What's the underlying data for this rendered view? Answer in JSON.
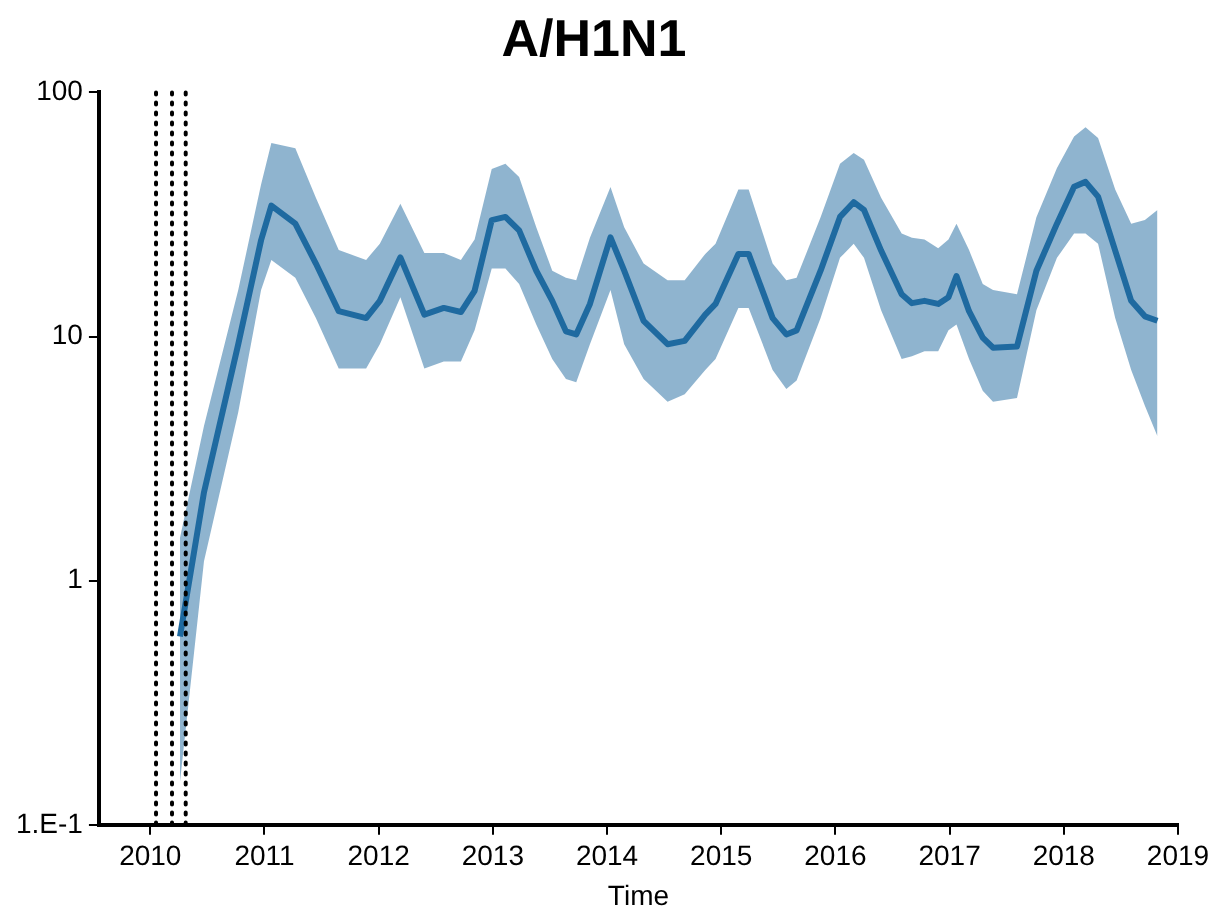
{
  "chart_data": {
    "type": "line",
    "title": "A/H1N1",
    "xlabel": "Time",
    "log": "y",
    "grid": false,
    "legend": false,
    "xlim": [
      2009.55,
      2019
    ],
    "xticks": [
      2010,
      2011,
      2012,
      2013,
      2014,
      2015,
      2016,
      2017,
      2018,
      2019
    ],
    "ylim": [
      0.1,
      100
    ],
    "yticks": [
      {
        "value": 0.1,
        "label": "1.E-1"
      },
      1,
      10,
      100
    ],
    "ref_lines": [
      {
        "axis": "x",
        "value": 2010.05,
        "line_style": "dotted",
        "color": "#000000"
      },
      {
        "axis": "x",
        "value": 2010.19,
        "line_style": "dotted",
        "color": "#000000"
      },
      {
        "axis": "x",
        "value": 2010.31,
        "line_style": "dotted",
        "color": "#000000"
      }
    ],
    "series": [
      {
        "color": "#1f6aa0",
        "x": [
          2010.26,
          2010.47,
          2010.77,
          2010.97,
          2011.06,
          2011.27,
          2011.45,
          2011.65,
          2011.89,
          2012.01,
          2012.19,
          2012.4,
          2012.57,
          2012.72,
          2012.84,
          2012.99,
          2013.11,
          2013.23,
          2013.38,
          2013.52,
          2013.64,
          2013.73,
          2013.85,
          2014.03,
          2014.15,
          2014.32,
          2014.53,
          2014.68,
          2014.86,
          2014.95,
          2015.15,
          2015.24,
          2015.45,
          2015.57,
          2015.66,
          2015.87,
          2016.04,
          2016.16,
          2016.25,
          2016.4,
          2016.58,
          2016.67,
          2016.78,
          2016.9,
          2016.99,
          2017.06,
          2017.17,
          2017.29,
          2017.38,
          2017.59,
          2017.76,
          2017.94,
          2018.09,
          2018.19,
          2018.3,
          2018.45,
          2018.59,
          2018.71,
          2018.82
        ],
        "values": [
          0.59,
          2.3,
          9.3,
          24.8,
          34.4,
          29,
          19.9,
          12.7,
          11.9,
          14,
          21.1,
          12.3,
          13.1,
          12.6,
          15.4,
          30,
          30.9,
          27.2,
          18.6,
          14,
          10.5,
          10.2,
          13.6,
          25.5,
          18.6,
          11.6,
          9.3,
          9.6,
          12.3,
          13.6,
          21.8,
          21.8,
          11.9,
          10.2,
          10.6,
          18.6,
          30.9,
          35.5,
          33,
          22.5,
          14.9,
          13.7,
          14,
          13.6,
          14.5,
          17.7,
          12.7,
          9.9,
          9,
          9.1,
          18.6,
          29,
          41.1,
          43,
          37.4,
          22.5,
          14,
          12.1,
          11.6
        ],
        "lower": [
          0.15,
          1.2,
          4.9,
          15.5,
          20.6,
          17.4,
          11.9,
          7.4,
          7.4,
          9.3,
          14.5,
          7.4,
          7.9,
          7.9,
          10.6,
          19,
          19,
          16.4,
          11.2,
          8.1,
          6.7,
          6.5,
          9.3,
          15.5,
          9.3,
          6.7,
          5.4,
          5.8,
          7.3,
          8.1,
          13.1,
          13.1,
          7.3,
          6.1,
          6.6,
          11.9,
          21,
          24,
          21,
          12.8,
          8.1,
          8.3,
          8.7,
          8.7,
          10.6,
          11.2,
          8.1,
          6,
          5.4,
          5.6,
          12.8,
          21,
          26.4,
          26.4,
          24,
          11.9,
          7.3,
          5.2,
          3.9
        ],
        "upper": [
          1.5,
          4.3,
          15.5,
          42,
          62,
          59,
          37,
          22.6,
          20.6,
          24,
          35,
          22,
          22,
          20.6,
          25,
          48.5,
          51,
          45,
          28,
          18.6,
          17.4,
          17,
          25.4,
          41,
          28,
          19.9,
          17,
          17,
          21.8,
          24,
          40,
          40,
          19.9,
          17,
          17.4,
          30.8,
          51,
          56.5,
          53,
          37,
          26.4,
          25.4,
          25,
          23,
          25,
          29,
          22.6,
          16.4,
          15.5,
          14.9,
          30.8,
          49,
          66,
          72,
          65,
          40,
          29,
          30,
          33
        ]
      }
    ]
  }
}
